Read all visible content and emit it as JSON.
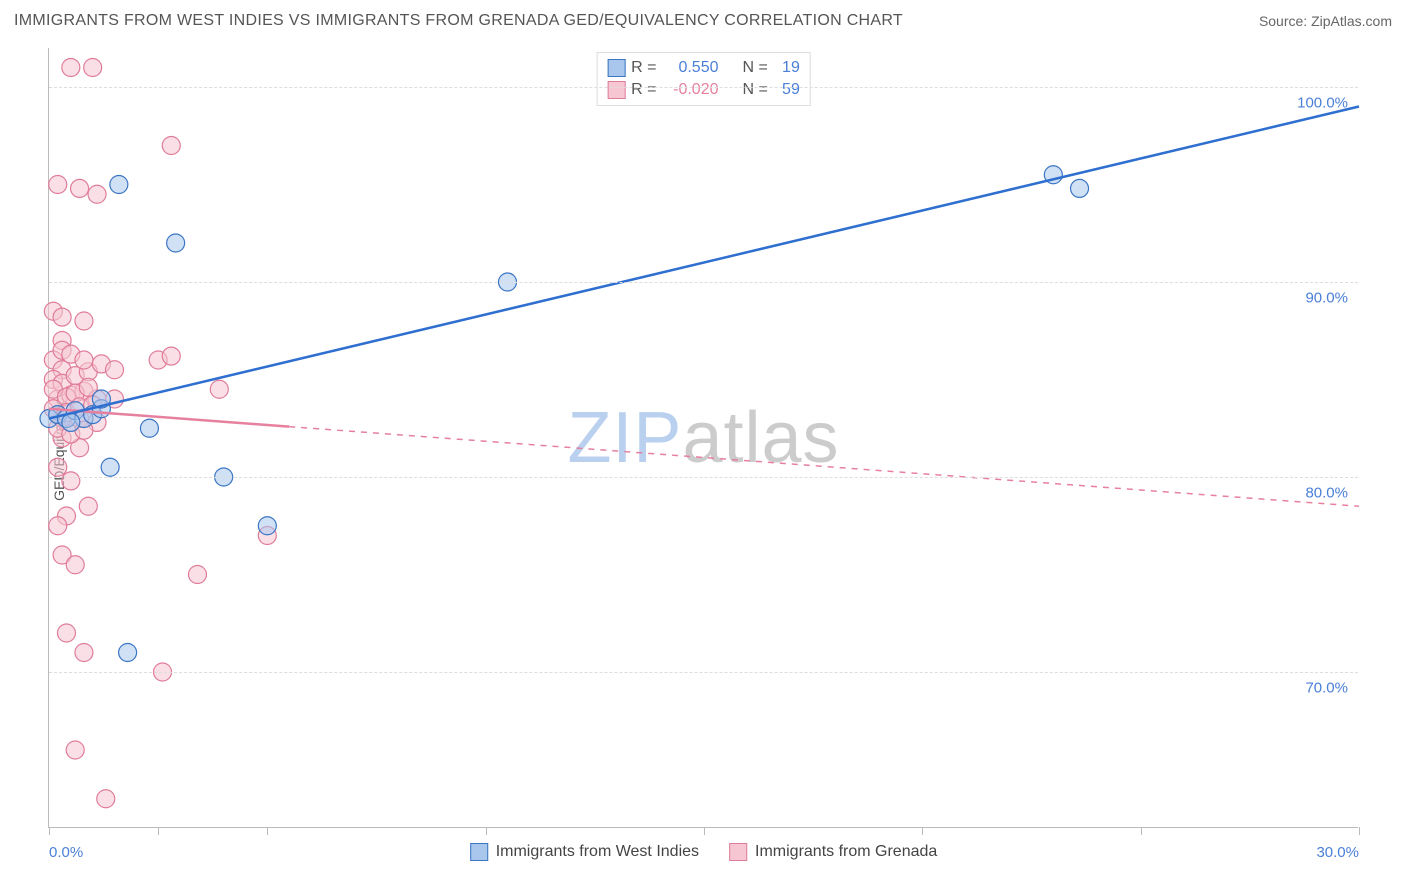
{
  "title": "IMMIGRANTS FROM WEST INDIES VS IMMIGRANTS FROM GRENADA GED/EQUIVALENCY CORRELATION CHART",
  "source": "Source: ZipAtlas.com",
  "y_axis_label": "GED/Equivalency",
  "watermark": {
    "zip": "ZIP",
    "atlas": "atlas",
    "zip_color": "#b9d1ef",
    "atlas_color": "#cccccc"
  },
  "colors": {
    "blue_fill": "#a9c7ec",
    "blue_stroke": "#3a75c4",
    "blue_line": "#2f6fd0",
    "pink_fill": "#f6c6d2",
    "pink_stroke": "#e07c9a",
    "pink_line": "#e6809e",
    "axis_text": "#4a7fd8",
    "pink_text": "#e6809e",
    "grid": "#dddddd",
    "border": "#bbbbbb"
  },
  "chart": {
    "type": "scatter",
    "x_min": 0.0,
    "x_max": 30.0,
    "y_min": 62.0,
    "y_max": 102.0,
    "x_ticks": [
      0.0,
      2.5,
      5.0,
      10.0,
      15.0,
      20.0,
      25.0,
      30.0
    ],
    "x_labeled": [
      0.0,
      30.0
    ],
    "y_ticks": [
      70.0,
      80.0,
      90.0,
      100.0
    ],
    "marker_radius": 9,
    "marker_opacity": 0.55,
    "line_width": 2.5,
    "series_a": {
      "label": "Immigrants from West Indies",
      "R": "0.550",
      "N": "19",
      "trend": {
        "x1": 0.0,
        "y1": 83.0,
        "x2": 30.0,
        "y2": 99.0,
        "solid_until_x": 30.0
      },
      "points": [
        [
          0.0,
          83.0
        ],
        [
          0.2,
          83.2
        ],
        [
          0.4,
          83.0
        ],
        [
          0.6,
          83.4
        ],
        [
          0.8,
          83.0
        ],
        [
          1.0,
          83.2
        ],
        [
          1.4,
          80.5
        ],
        [
          1.6,
          95.0
        ],
        [
          2.9,
          92.0
        ],
        [
          2.3,
          82.5
        ],
        [
          1.2,
          83.5
        ],
        [
          4.0,
          80.0
        ],
        [
          5.0,
          77.5
        ],
        [
          1.8,
          71.0
        ],
        [
          10.5,
          90.0
        ],
        [
          23.0,
          95.5
        ],
        [
          23.6,
          94.8
        ],
        [
          1.2,
          84.0
        ],
        [
          0.5,
          82.8
        ]
      ]
    },
    "series_b": {
      "label": "Immigrants from Grenada",
      "R": "-0.020",
      "N": "59",
      "trend": {
        "x1": 0.0,
        "y1": 83.5,
        "x2": 30.0,
        "y2": 78.5,
        "solid_until_x": 5.5
      },
      "points": [
        [
          0.5,
          101.0
        ],
        [
          1.0,
          101.0
        ],
        [
          0.1,
          88.5
        ],
        [
          0.3,
          88.2
        ],
        [
          0.8,
          88.0
        ],
        [
          0.3,
          87.0
        ],
        [
          0.1,
          86.0
        ],
        [
          2.5,
          86.0
        ],
        [
          2.8,
          86.2
        ],
        [
          0.3,
          85.5
        ],
        [
          0.1,
          85.0
        ],
        [
          0.3,
          84.8
        ],
        [
          0.6,
          85.2
        ],
        [
          0.9,
          85.4
        ],
        [
          0.2,
          84.0
        ],
        [
          0.5,
          84.2
        ],
        [
          0.8,
          84.4
        ],
        [
          1.1,
          84.0
        ],
        [
          1.5,
          84.0
        ],
        [
          3.9,
          84.5
        ],
        [
          0.3,
          83.0
        ],
        [
          0.7,
          83.0
        ],
        [
          1.1,
          82.8
        ],
        [
          0.3,
          82.0
        ],
        [
          0.7,
          81.5
        ],
        [
          0.2,
          80.5
        ],
        [
          0.5,
          79.8
        ],
        [
          5.0,
          77.0
        ],
        [
          0.4,
          78.0
        ],
        [
          0.9,
          78.5
        ],
        [
          0.2,
          77.5
        ],
        [
          0.3,
          76.0
        ],
        [
          0.6,
          75.5
        ],
        [
          3.4,
          75.0
        ],
        [
          0.4,
          72.0
        ],
        [
          0.8,
          71.0
        ],
        [
          2.6,
          70.0
        ],
        [
          0.6,
          66.0
        ],
        [
          1.3,
          63.5
        ],
        [
          0.2,
          95.0
        ],
        [
          0.7,
          94.8
        ],
        [
          1.1,
          94.5
        ],
        [
          2.8,
          97.0
        ],
        [
          0.1,
          84.5
        ],
        [
          0.4,
          84.1
        ],
        [
          0.6,
          84.3
        ],
        [
          0.9,
          84.6
        ],
        [
          0.1,
          83.5
        ],
        [
          0.4,
          83.3
        ],
        [
          0.7,
          83.6
        ],
        [
          1.0,
          83.7
        ],
        [
          0.2,
          82.5
        ],
        [
          0.5,
          82.2
        ],
        [
          0.8,
          82.4
        ],
        [
          0.3,
          86.5
        ],
        [
          0.5,
          86.3
        ],
        [
          0.8,
          86.0
        ],
        [
          1.2,
          85.8
        ],
        [
          1.5,
          85.5
        ]
      ]
    }
  },
  "legend_top": [
    {
      "swatch": "blue",
      "R_label": "R =",
      "R_val": "0.550",
      "N_label": "N =",
      "N_val": "19"
    },
    {
      "swatch": "pink",
      "R_label": "R =",
      "R_val": "-0.020",
      "N_label": "N =",
      "N_val": "59"
    }
  ],
  "x_label_format": {
    "0.0": "0.0%",
    "30.0": "30.0%"
  },
  "y_label_format": {
    "70.0": "70.0%",
    "80.0": "80.0%",
    "90.0": "90.0%",
    "100.0": "100.0%"
  }
}
